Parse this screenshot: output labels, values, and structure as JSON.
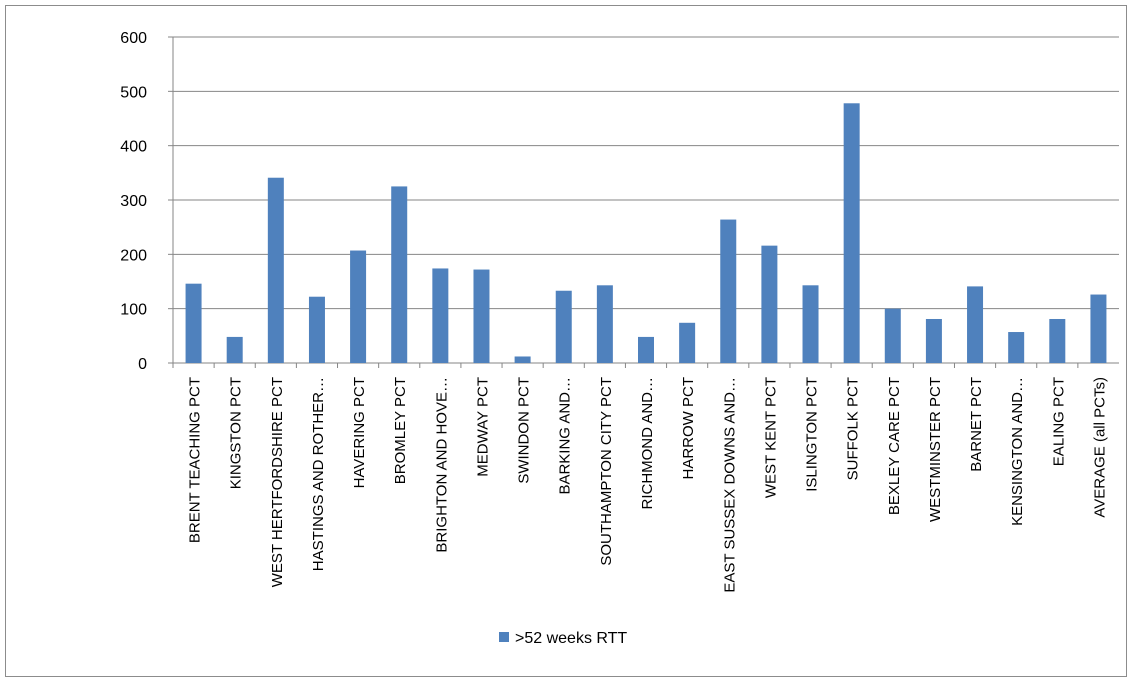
{
  "chart_data": {
    "type": "bar",
    "title": "",
    "xlabel": "",
    "ylabel": "",
    "ylim": [
      0,
      600
    ],
    "yticks": [
      0,
      100,
      200,
      300,
      400,
      500,
      600
    ],
    "grid": true,
    "legend_position": "bottom",
    "categories": [
      "BRENT TEACHING PCT",
      "KINGSTON PCT",
      "WEST HERTFORDSHIRE PCT",
      "HASTINGS AND ROTHER…",
      "HAVERING PCT",
      "BROMLEY PCT",
      "BRIGHTON AND HOVE…",
      "MEDWAY PCT",
      "SWINDON PCT",
      "BARKING AND…",
      "SOUTHAMPTON CITY PCT",
      "RICHMOND AND…",
      "HARROW PCT",
      "EAST SUSSEX DOWNS AND…",
      "WEST KENT PCT",
      "ISLINGTON PCT",
      "SUFFOLK PCT",
      "BEXLEY CARE PCT",
      "WESTMINSTER PCT",
      "BARNET PCT",
      "KENSINGTON AND…",
      "EALING PCT",
      "AVERAGE (all PCTs)"
    ],
    "series": [
      {
        "name": ">52 weeks RTT",
        "color": "#4f81bd",
        "values": [
          146,
          48,
          341,
          122,
          207,
          325,
          174,
          172,
          12,
          133,
          143,
          48,
          74,
          264,
          216,
          143,
          478,
          100,
          81,
          141,
          57,
          81,
          126
        ]
      }
    ]
  }
}
